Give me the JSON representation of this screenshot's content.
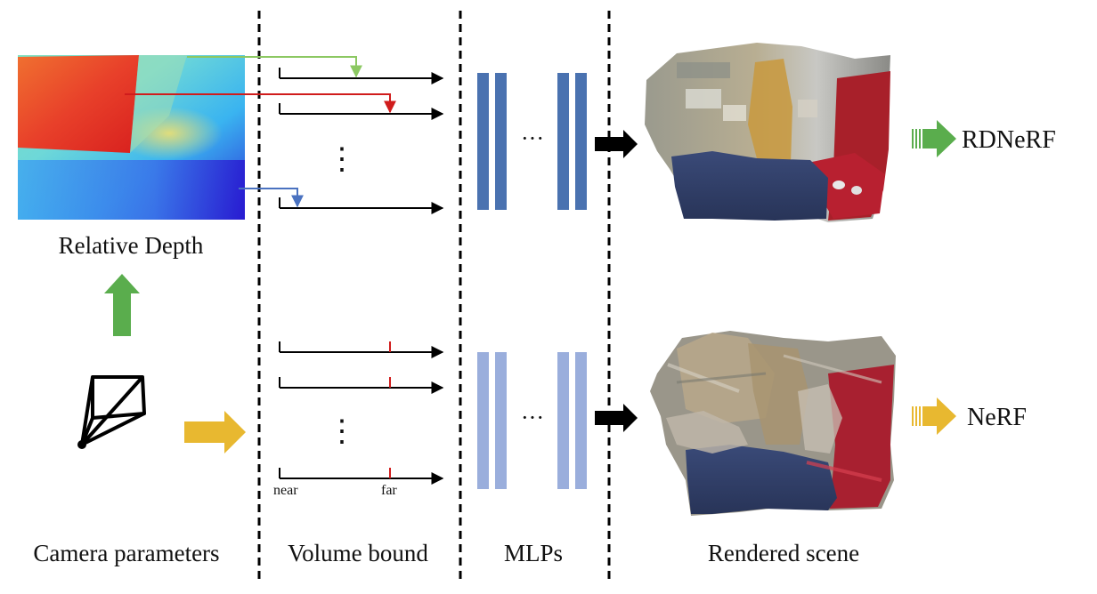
{
  "labels": {
    "relative_depth": "Relative Depth",
    "camera_parameters": "Camera parameters",
    "volume_bound": "Volume bound",
    "mlps": "MLPs",
    "rendered_scene": "Rendered scene",
    "near": "near",
    "far": "far",
    "ellipsis_vertical": "⋮",
    "ellipsis_horizontal": "···",
    "rdnerf": "RDNeRF",
    "nerf": "NeRF"
  },
  "colors": {
    "green": "#5aad4d",
    "yellow": "#e8b830",
    "mlp_dark": "#4a72b0",
    "mlp_light": "#9aaedc",
    "ray_red": "#d01c1c",
    "ray_green": "#8cc862",
    "ray_blue": "#4a72c0"
  }
}
